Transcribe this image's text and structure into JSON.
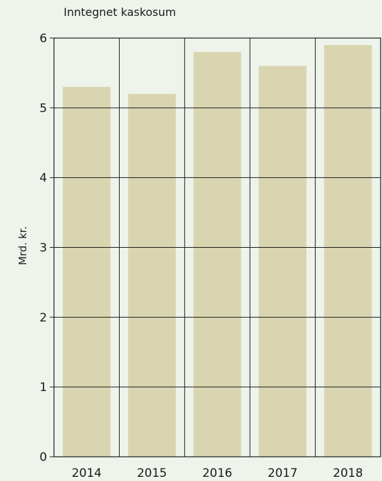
{
  "chart_data": {
    "type": "bar",
    "title": "Inntegnet kaskosum",
    "xlabel": "",
    "ylabel": "Mrd. kr.",
    "categories": [
      "2014",
      "2015",
      "2016",
      "2017",
      "2018"
    ],
    "series": [
      {
        "values": [
          5.3,
          5.2,
          5.8,
          5.6,
          5.9
        ]
      }
    ],
    "ylim": [
      0,
      6
    ],
    "yticks": [
      "0",
      "1",
      "2",
      "3",
      "4",
      "5",
      "6"
    ],
    "grid": true,
    "legend": "none",
    "colors": {
      "background": "#eef4eb",
      "bar": "#d8d5b0",
      "axis": "#1a1a1a"
    }
  }
}
